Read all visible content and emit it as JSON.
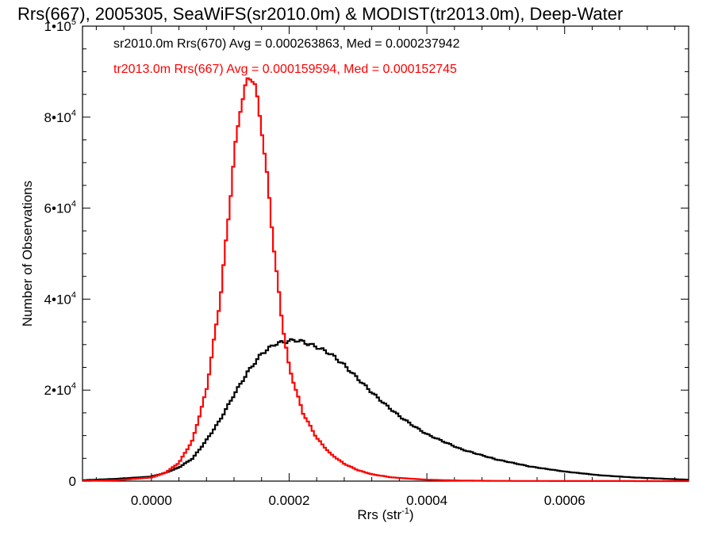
{
  "chart_data": {
    "type": "line",
    "title": "Rrs(667), 2005305, SeaWiFS(sr2010.0m) & MODIST(tr2013.0m), Deep-Water",
    "xlabel": "Rrs (str",
    "xlabel_sup": "-1",
    "xlabel_close": ")",
    "ylabel": "Number of Observations",
    "xlim": [
      -0.0001,
      0.00078
    ],
    "ylim": [
      0,
      100000
    ],
    "x_ticks": [
      {
        "value": 0.0,
        "label": "0.0000"
      },
      {
        "value": 0.0002,
        "label": "0.0002"
      },
      {
        "value": 0.0004,
        "label": "0.0004"
      },
      {
        "value": 0.0006,
        "label": "0.0006"
      }
    ],
    "y_ticks": [
      {
        "value": 0,
        "label": "0",
        "sup": ""
      },
      {
        "value": 20000,
        "label": "2•10",
        "sup": "4"
      },
      {
        "value": 40000,
        "label": "4•10",
        "sup": "4"
      },
      {
        "value": 60000,
        "label": "6•10",
        "sup": "4"
      },
      {
        "value": 80000,
        "label": "8•10",
        "sup": "4"
      },
      {
        "value": 100000,
        "label": "1•10",
        "sup": "5"
      }
    ],
    "series": [
      {
        "legend": "sr2010.0m Rrs(670) Avg = 0.000263863, Med = 0.000237942",
        "color": "#000000",
        "x": [
          -0.0001,
          -5e-05,
          0.0,
          2e-05,
          4e-05,
          6e-05,
          8e-05,
          0.0001,
          0.00012,
          0.00014,
          0.00016,
          0.00018,
          0.0002,
          0.00021,
          0.00022,
          0.00024,
          0.00026,
          0.00028,
          0.0003,
          0.00032,
          0.00034,
          0.00036,
          0.00038,
          0.0004,
          0.00045,
          0.0005,
          0.00055,
          0.0006,
          0.00065,
          0.0007,
          0.00078
        ],
        "values": [
          200,
          500,
          1000,
          1800,
          3000,
          5000,
          9000,
          13500,
          19000,
          24000,
          28000,
          30200,
          30800,
          31000,
          30600,
          29500,
          28000,
          25500,
          22500,
          19500,
          16800,
          14300,
          12200,
          10300,
          7000,
          4800,
          3200,
          2100,
          1300,
          800,
          300
        ]
      },
      {
        "legend": "tr2013.0m Rrs(667) Avg = 0.000159594, Med = 0.000152745",
        "color": "#ff0000",
        "x": [
          -0.0001,
          -5e-05,
          0.0,
          2e-05,
          4e-05,
          6e-05,
          8e-05,
          0.0001,
          0.00011,
          0.00012,
          0.00013,
          0.00014,
          0.000145,
          0.00015,
          0.00016,
          0.00017,
          0.00018,
          0.00019,
          0.0002,
          0.00022,
          0.00024,
          0.00026,
          0.00028,
          0.0003,
          0.00032,
          0.00035,
          0.0004,
          0.00045,
          0.0005,
          0.0006,
          0.00078
        ],
        "values": [
          50,
          200,
          800,
          1800,
          4000,
          9000,
          20000,
          40000,
          55000,
          71000,
          83000,
          88000,
          89500,
          87000,
          78000,
          64000,
          48000,
          35000,
          25000,
          15000,
          9500,
          6000,
          3800,
          2400,
          1500,
          800,
          300,
          120,
          50,
          20,
          0
        ]
      }
    ]
  }
}
